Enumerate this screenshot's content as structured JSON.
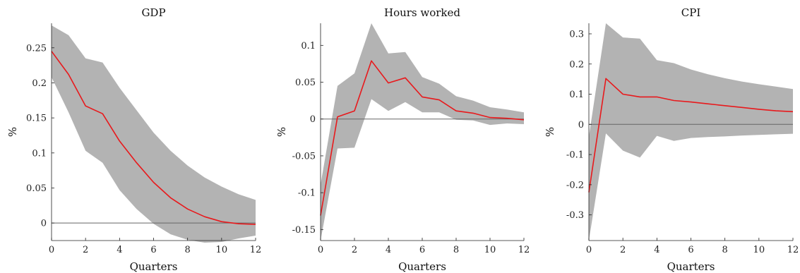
{
  "chart_data": [
    {
      "type": "line",
      "title": "GDP",
      "xlabel": "Quarters",
      "ylabel": "%",
      "xlim": [
        0,
        12
      ],
      "ylim": [
        -0.025,
        0.285
      ],
      "xticks": [
        0,
        2,
        4,
        6,
        8,
        10,
        12
      ],
      "yticks": [
        0,
        0.05,
        0.1,
        0.15,
        0.2,
        0.25
      ],
      "ytick_labels": [
        "0",
        "0.05",
        "0.1",
        "0.15",
        "0.2",
        "0.25"
      ],
      "x": [
        0,
        1,
        2,
        3,
        4,
        5,
        6,
        7,
        8,
        9,
        10,
        11,
        12
      ],
      "series": [
        {
          "role": "median",
          "color": "#e8191c",
          "values": [
            0.245,
            0.212,
            0.167,
            0.156,
            0.117,
            0.086,
            0.058,
            0.036,
            0.02,
            0.009,
            0.002,
            -0.001,
            -0.002
          ]
        },
        {
          "role": "band_upper",
          "color": "#b3b3b3",
          "values": [
            0.282,
            0.268,
            0.235,
            0.229,
            0.193,
            0.161,
            0.129,
            0.103,
            0.082,
            0.065,
            0.052,
            0.041,
            0.033
          ]
        },
        {
          "role": "band_lower",
          "color": "#b3b3b3",
          "values": [
            0.208,
            0.158,
            0.103,
            0.086,
            0.047,
            0.02,
            -0.001,
            -0.016,
            -0.024,
            -0.028,
            -0.027,
            -0.022,
            -0.018
          ]
        }
      ],
      "zero_line": true,
      "grid": false
    },
    {
      "type": "line",
      "title": "Hours worked",
      "xlabel": "Quarters",
      "ylabel": "%",
      "xlim": [
        0,
        12
      ],
      "ylim": [
        -0.165,
        0.13
      ],
      "xticks": [
        0,
        2,
        4,
        6,
        8,
        10,
        12
      ],
      "yticks": [
        -0.15,
        -0.1,
        -0.05,
        0,
        0.05,
        0.1
      ],
      "ytick_labels": [
        "-0.15",
        "-0.1",
        "-0.05",
        "0",
        "0.05",
        "0.1"
      ],
      "x": [
        0,
        1,
        2,
        3,
        4,
        5,
        6,
        7,
        8,
        9,
        10,
        11,
        12
      ],
      "series": [
        {
          "role": "median",
          "color": "#e8191c",
          "values": [
            -0.131,
            0.003,
            0.011,
            0.079,
            0.049,
            0.056,
            0.03,
            0.026,
            0.011,
            0.008,
            0.002,
            0.001,
            -0.001
          ]
        },
        {
          "role": "band_upper",
          "color": "#b3b3b3",
          "values": [
            -0.089,
            0.045,
            0.062,
            0.13,
            0.089,
            0.091,
            0.057,
            0.048,
            0.031,
            0.025,
            0.016,
            0.013,
            0.009
          ]
        },
        {
          "role": "band_lower",
          "color": "#b3b3b3",
          "values": [
            -0.165,
            -0.04,
            -0.039,
            0.027,
            0.011,
            0.023,
            0.009,
            0.009,
            -0.001,
            -0.002,
            -0.008,
            -0.006,
            -0.007
          ]
        }
      ],
      "zero_line": true,
      "grid": false
    },
    {
      "type": "line",
      "title": "CPI",
      "xlabel": "Quarters",
      "ylabel": "%",
      "xlim": [
        0,
        12
      ],
      "ylim": [
        -0.385,
        0.335
      ],
      "xticks": [
        0,
        2,
        4,
        6,
        8,
        10,
        12
      ],
      "yticks": [
        -0.3,
        -0.2,
        -0.1,
        0,
        0.1,
        0.2,
        0.3
      ],
      "ytick_labels": [
        "-0.3",
        "-0.2",
        "-0.1",
        "0",
        "0.1",
        "0.2",
        "0.3"
      ],
      "x": [
        0,
        1,
        2,
        3,
        4,
        5,
        6,
        7,
        8,
        9,
        10,
        11,
        12
      ],
      "series": [
        {
          "role": "median",
          "color": "#e8191c",
          "values": [
            -0.225,
            0.152,
            0.1,
            0.091,
            0.091,
            0.079,
            0.074,
            0.068,
            0.062,
            0.056,
            0.05,
            0.045,
            0.042
          ]
        },
        {
          "role": "band_upper",
          "color": "#b3b3b3",
          "values": [
            -0.04,
            0.335,
            0.288,
            0.284,
            0.213,
            0.203,
            0.182,
            0.166,
            0.153,
            0.142,
            0.133,
            0.125,
            0.117
          ]
        },
        {
          "role": "band_lower",
          "color": "#b3b3b3",
          "values": [
            -0.385,
            -0.03,
            -0.087,
            -0.11,
            -0.038,
            -0.055,
            -0.045,
            -0.042,
            -0.04,
            -0.037,
            -0.035,
            -0.033,
            -0.031
          ]
        }
      ],
      "zero_line": true,
      "grid": false
    }
  ]
}
